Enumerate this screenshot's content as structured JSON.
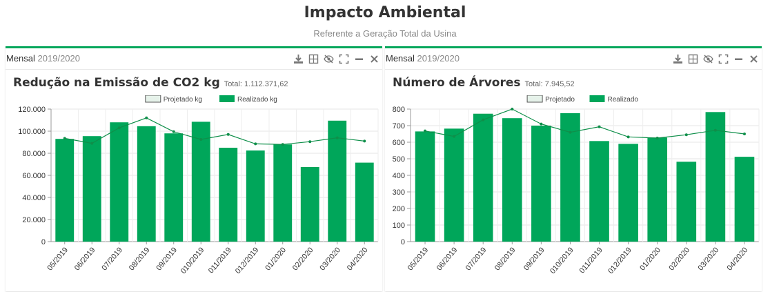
{
  "header": {
    "title": "Impacto Ambiental",
    "subtitle": "Referente a Geração Total da Usina"
  },
  "colors": {
    "accent": "#00a65a",
    "bar": "#00a65a",
    "line": "#0f8f4a",
    "legend_projetado": "#e6f2ea"
  },
  "toolbar_icons": [
    "download-icon",
    "table-icon",
    "eye-slash-icon",
    "expand-icon",
    "minimize-icon",
    "close-icon"
  ],
  "panels": [
    {
      "period_label": "Mensal",
      "period_years": "2019/2020",
      "title": "Redução na Emissão de CO2 kg",
      "total": "Total: 1.112.371,62"
    },
    {
      "period_label": "Mensal",
      "period_years": "2019/2020",
      "title": "Número de Árvores",
      "total": "Total: 7.945,52"
    }
  ],
  "chart_data": [
    {
      "type": "bar",
      "categories": [
        "05/2019",
        "06/2019",
        "07/2019",
        "08/2019",
        "09/2019",
        "010/2019",
        "011/2019",
        "012/2019",
        "01/2020",
        "02/2020",
        "03/2020",
        "04/2020"
      ],
      "series": [
        {
          "name": "Projetado kg",
          "type": "line",
          "values": [
            93500,
            89000,
            103000,
            112000,
            99500,
            92500,
            97000,
            88500,
            88000,
            90500,
            94000,
            91000
          ]
        },
        {
          "name": "Realizado kg",
          "type": "bar",
          "values": [
            93000,
            95500,
            108000,
            104500,
            98000,
            108500,
            85000,
            82500,
            88000,
            67500,
            109500,
            71500
          ]
        }
      ],
      "yticks": [
        "0",
        "20.000",
        "40.000",
        "60.000",
        "80.000",
        "100.000",
        "120.000"
      ],
      "ylim": [
        0,
        120000
      ],
      "grid": true,
      "legend": "top-center"
    },
    {
      "type": "bar",
      "categories": [
        "05/2019",
        "06/2019",
        "07/2019",
        "08/2019",
        "09/2019",
        "010/2019",
        "011/2019",
        "012/2019",
        "01/2020",
        "02/2020",
        "03/2020",
        "04/2020"
      ],
      "series": [
        {
          "name": "Projetado",
          "type": "line",
          "values": [
            668,
            635,
            735,
            800,
            710,
            660,
            693,
            632,
            625,
            645,
            672,
            650
          ]
        },
        {
          "name": "Realizado",
          "type": "bar",
          "values": [
            665,
            682,
            772,
            745,
            700,
            775,
            607,
            590,
            628,
            482,
            782,
            512
          ]
        }
      ],
      "yticks": [
        "0",
        "100",
        "200",
        "300",
        "400",
        "500",
        "600",
        "700",
        "800"
      ],
      "ylim": [
        0,
        800
      ],
      "grid": true,
      "legend": "top-center"
    }
  ]
}
